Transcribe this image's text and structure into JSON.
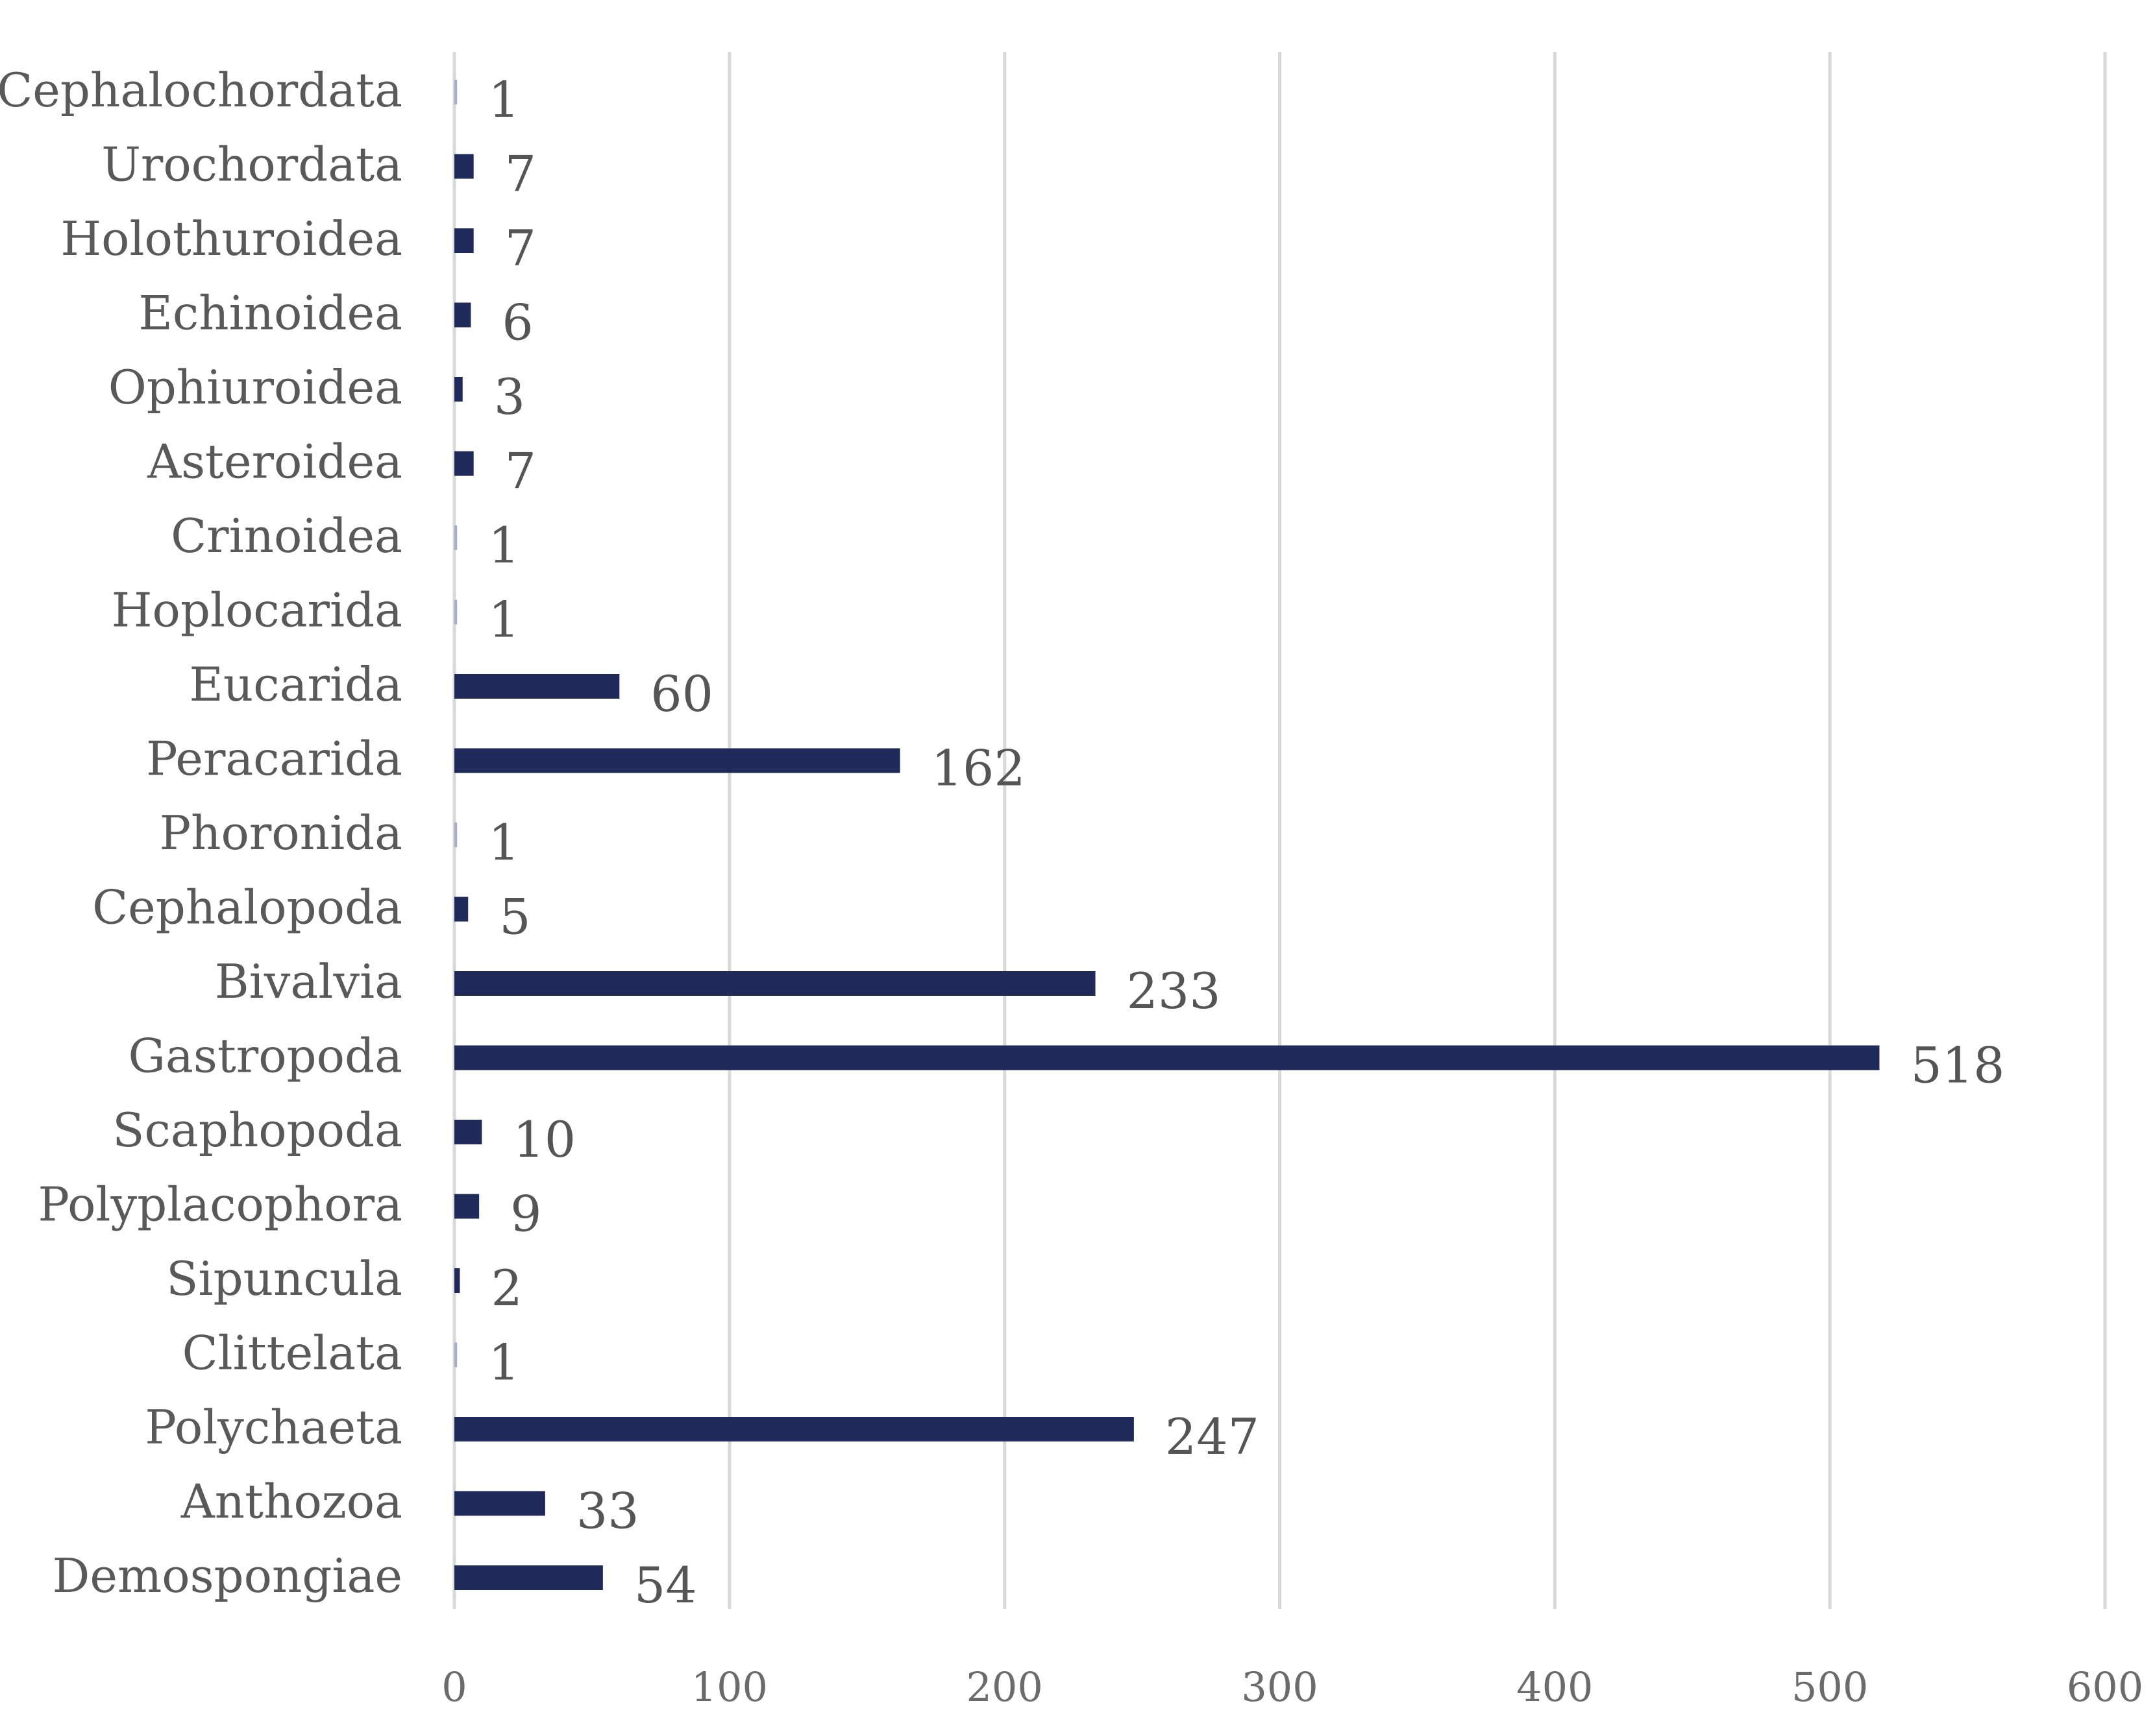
{
  "chart_data": {
    "type": "bar",
    "orientation": "horizontal",
    "title": "",
    "xlabel": "",
    "ylabel": "",
    "categories": [
      "Cephalochordata",
      "Urochordata",
      "Holothuroidea",
      "Echinoidea",
      "Ophiuroidea",
      "Asteroidea",
      "Crinoidea",
      "Hoplocarida",
      "Eucarida",
      "Peracarida",
      "Phoronida",
      "Cephalopoda",
      "Bivalvia",
      "Gastropoda",
      "Scaphopoda",
      "Polyplacophora",
      "Sipuncula",
      "Clittelata",
      "Polychaeta",
      "Anthozoa",
      "Demospongiae"
    ],
    "values": [
      1,
      7,
      7,
      6,
      3,
      7,
      1,
      1,
      60,
      162,
      1,
      5,
      233,
      518,
      10,
      9,
      2,
      1,
      247,
      33,
      54
    ],
    "data_labels": [
      "1",
      "7",
      "7",
      "6",
      "3",
      "7",
      "1",
      "1",
      "60",
      "162",
      "1",
      "5",
      "233",
      "518",
      "10",
      "9",
      "2",
      "1",
      "247",
      "33",
      "54"
    ],
    "xlim": [
      0,
      600
    ],
    "x_ticks": [
      0,
      100,
      200,
      300,
      400,
      500,
      600
    ],
    "x_tick_labels": [
      "0",
      "100",
      "200",
      "300",
      "400",
      "500",
      "600"
    ],
    "grid": "vertical",
    "legend": "none",
    "colors": {
      "bar": "#1f2a5a",
      "bar_small": "#a9adc4",
      "grid": "#d9d9d9"
    }
  }
}
